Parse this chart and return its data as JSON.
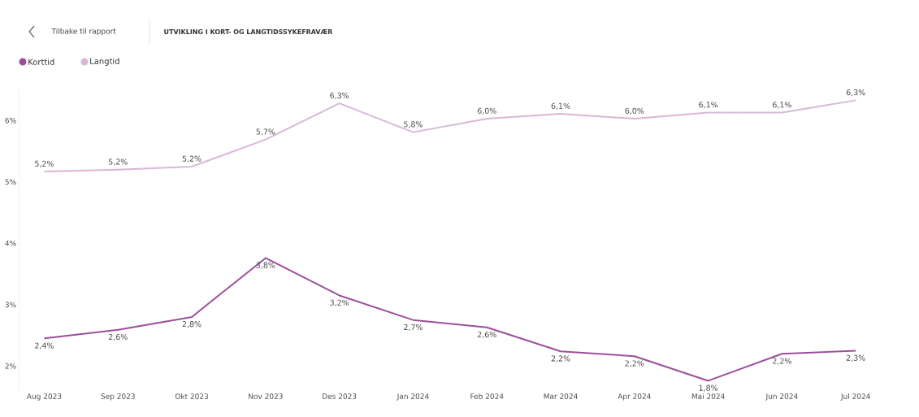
{
  "chart_data": {
    "type": "line",
    "title": "UTVIKLING I KORT- OG LANGTIDSSYKEFRAVÆR",
    "annotations": [
      "Tilbake til rapport"
    ],
    "categories": [
      "Aug 2023",
      "Sep 2023",
      "Okt 2023",
      "Nov 2023",
      "Des 2023",
      "Jan 2024",
      "Feb 2024",
      "Mar 2024",
      "Apr 2024",
      "Mai 2024",
      "Jun 2024",
      "Jul 2024"
    ],
    "series": [
      {
        "name": "Korttid",
        "color": "#9b4f9b",
        "values": [
          2.45,
          2.59,
          2.8,
          3.76,
          3.15,
          2.75,
          2.63,
          2.24,
          2.16,
          1.76,
          2.2,
          2.25
        ],
        "value_labels": [
          "2,4%",
          "2,6%",
          "2,8%",
          "3,8%",
          "3,2%",
          "2,7%",
          "2,6%",
          "2,2%",
          "2,2%",
          "1,8%",
          "2,2%",
          "2,3%"
        ]
      },
      {
        "name": "Langtid",
        "color": "#d8b7d8",
        "values": [
          5.17,
          5.2,
          5.25,
          5.69,
          6.28,
          5.81,
          6.03,
          6.11,
          6.03,
          6.13,
          6.13,
          6.33
        ],
        "value_labels": [
          "5,2%",
          "5,2%",
          "5,2%",
          "5,7%",
          "6,3%",
          "5,8%",
          "6,0%",
          "6,1%",
          "6,0%",
          "6,1%",
          "6,1%",
          "6,3%"
        ]
      }
    ],
    "yticks": [
      {
        "value": 2,
        "label": "2%"
      },
      {
        "value": 3,
        "label": "3%"
      },
      {
        "value": 4,
        "label": "4%"
      },
      {
        "value": 5,
        "label": "5%"
      },
      {
        "value": 6,
        "label": "6%"
      }
    ],
    "ylim": [
      1.6,
      6.5
    ],
    "grid": "y",
    "legend": "top left",
    "marker": "none",
    "line_style": "solid"
  }
}
